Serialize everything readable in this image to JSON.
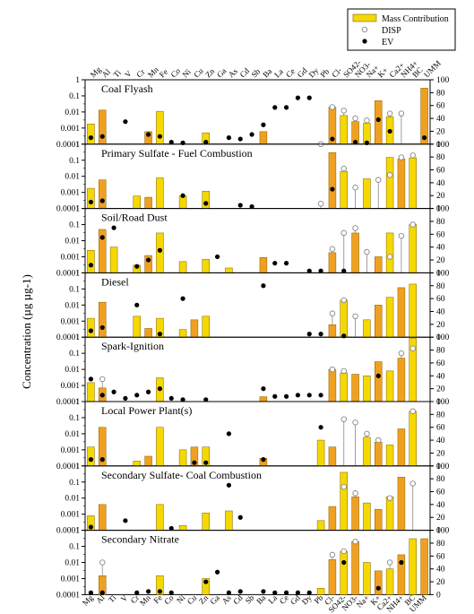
{
  "chart_data": {
    "type": "bar",
    "ylabel": "Concentration (µg µg-1)",
    "y_scale": "log",
    "ylim": [
      0.0001,
      1
    ],
    "y_ticks": [
      "0.0001",
      "0.001",
      "0.01",
      "0.1",
      "1"
    ],
    "y2lim": [
      0,
      100
    ],
    "y2_ticks": [
      "0",
      "20",
      "40",
      "60",
      "80",
      "100"
    ],
    "grid": false,
    "legend": {
      "position": "top-right",
      "entries": [
        {
          "key": "mass",
          "label": "Mass Contribution",
          "color": "#f5d800"
        },
        {
          "key": "disp",
          "label": "DISP"
        },
        {
          "key": "ev",
          "label": "EV"
        }
      ]
    },
    "colors": {
      "bar_light": "#f5d800",
      "bar_dark": "#f0a020",
      "bar_edge": "#806000",
      "disp": "#888888",
      "ev": "#000000"
    },
    "species": [
      "Mg",
      "Al",
      "Ti",
      "V",
      "Cr",
      "Mn",
      "Fe",
      "Co",
      "Ni",
      "Cu",
      "Zn",
      "Ga",
      "As",
      "Cd",
      "Sb",
      "Ba",
      "La",
      "Ce",
      "Gd",
      "Dy",
      "Pb",
      "Cl-",
      "SO42-",
      "NO3-",
      "Na+",
      "K+",
      "Ca2+",
      "NH4+",
      "BC",
      "UMM"
    ],
    "panels": [
      {
        "title": "Coal Flyash",
        "mass": [
          0.0018,
          0.013,
          null,
          null,
          null,
          0.0006,
          0.011,
          null,
          null,
          null,
          0.0005,
          null,
          null,
          null,
          null,
          0.0006,
          null,
          null,
          null,
          null,
          0.0001,
          0.02,
          0.006,
          0.0025,
          0.002,
          0.05,
          0.005,
          null,
          null,
          0.3
        ],
        "disp": [
          null,
          null,
          null,
          null,
          null,
          null,
          null,
          null,
          null,
          null,
          null,
          null,
          null,
          null,
          null,
          null,
          null,
          null,
          null,
          null,
          0.0001,
          0.02,
          0.012,
          0.004,
          0.003,
          null,
          0.008,
          0.008,
          null,
          null
        ],
        "ev": [
          10,
          12,
          null,
          35,
          null,
          15,
          12,
          3,
          2,
          null,
          3,
          null,
          10,
          8,
          15,
          30,
          57,
          57,
          72,
          72,
          null,
          8,
          null,
          3,
          2,
          38,
          20,
          null,
          null,
          10
        ]
      },
      {
        "title": "Primary Sulfate - Fuel Combustion",
        "mass": [
          0.0018,
          0.006,
          null,
          null,
          0.0006,
          0.0005,
          0.008,
          null,
          0.0006,
          null,
          0.0012,
          null,
          null,
          null,
          null,
          null,
          null,
          null,
          null,
          null,
          0.0001,
          0.3,
          0.02,
          null,
          0.007,
          null,
          0.15,
          0.12,
          0.14,
          null
        ],
        "disp": [
          null,
          null,
          null,
          null,
          null,
          null,
          null,
          null,
          null,
          null,
          null,
          null,
          null,
          null,
          null,
          null,
          null,
          null,
          null,
          null,
          0.0002,
          null,
          0.03,
          0.002,
          null,
          0.006,
          0.012,
          0.15,
          0.2,
          null
        ],
        "ev": [
          10,
          12,
          null,
          null,
          null,
          null,
          null,
          null,
          20,
          null,
          8,
          null,
          null,
          5,
          3,
          null,
          null,
          null,
          null,
          null,
          null,
          30,
          null,
          null,
          null,
          null,
          null,
          null,
          null,
          null
        ]
      },
      {
        "title": "Soil/Road Dust",
        "mass": [
          0.0025,
          0.05,
          0.004,
          null,
          0.0003,
          0.0012,
          0.03,
          null,
          0.0005,
          null,
          0.0007,
          null,
          0.0002,
          null,
          null,
          0.0009,
          null,
          null,
          null,
          null,
          null,
          0.0018,
          null,
          0.03,
          null,
          0.001,
          0.03,
          null,
          0.1,
          null
        ],
        "disp": [
          null,
          null,
          null,
          null,
          null,
          null,
          null,
          null,
          null,
          null,
          null,
          null,
          null,
          null,
          null,
          null,
          null,
          null,
          null,
          null,
          null,
          0.003,
          0.03,
          0.06,
          0.002,
          null,
          0.001,
          0.02,
          0.1,
          null
        ],
        "ev": [
          12,
          55,
          70,
          null,
          10,
          20,
          35,
          null,
          null,
          null,
          null,
          25,
          null,
          null,
          null,
          null,
          15,
          15,
          null,
          3,
          3,
          null,
          3,
          null,
          null,
          null,
          null,
          null,
          null,
          null
        ]
      },
      {
        "title": "Diesel",
        "mass": [
          0.0015,
          0.015,
          null,
          null,
          0.002,
          0.00035,
          0.0015,
          null,
          0.0003,
          0.0012,
          0.002,
          null,
          null,
          null,
          null,
          0.0001,
          null,
          null,
          null,
          null,
          null,
          0.0006,
          0.02,
          null,
          0.0012,
          0.01,
          0.03,
          0.12,
          0.2,
          null
        ],
        "disp": [
          null,
          null,
          null,
          null,
          null,
          null,
          null,
          null,
          null,
          null,
          null,
          null,
          null,
          null,
          null,
          null,
          null,
          null,
          null,
          null,
          null,
          0.003,
          0.02,
          0.002,
          null,
          null,
          null,
          null,
          null,
          null
        ],
        "ev": [
          10,
          15,
          null,
          null,
          50,
          null,
          5,
          null,
          60,
          null,
          null,
          null,
          null,
          null,
          null,
          80,
          null,
          null,
          null,
          5,
          5,
          null,
          2,
          null,
          null,
          null,
          null,
          null,
          null,
          null
        ]
      },
      {
        "title": "Spark-Ignition",
        "mass": [
          0.0015,
          0.0007,
          null,
          null,
          null,
          null,
          0.003,
          null,
          null,
          null,
          null,
          null,
          null,
          null,
          null,
          0.0002,
          null,
          null,
          null,
          null,
          0.0001,
          0.01,
          0.006,
          0.005,
          0.004,
          0.03,
          0.008,
          0.05,
          0.85,
          null
        ],
        "disp": [
          null,
          0.0025,
          null,
          null,
          null,
          null,
          null,
          null,
          null,
          null,
          null,
          null,
          null,
          null,
          null,
          null,
          null,
          null,
          null,
          null,
          null,
          0.01,
          0.008,
          null,
          null,
          null,
          null,
          0.1,
          0.2,
          null
        ],
        "ev": [
          35,
          10,
          15,
          5,
          10,
          15,
          20,
          5,
          3,
          null,
          3,
          null,
          null,
          null,
          null,
          20,
          8,
          8,
          10,
          10,
          10,
          null,
          null,
          null,
          null,
          40,
          null,
          null,
          null,
          null
        ]
      },
      {
        "title": "Local Power Plant(s)",
        "mass": [
          0.0015,
          0.025,
          null,
          null,
          0.0002,
          0.0004,
          0.025,
          null,
          0.001,
          0.0015,
          0.0015,
          null,
          null,
          null,
          null,
          0.0003,
          null,
          null,
          null,
          null,
          0.004,
          0.0015,
          null,
          null,
          0.006,
          0.003,
          0.002,
          0.02,
          0.25,
          null
        ],
        "disp": [
          null,
          null,
          null,
          null,
          null,
          null,
          null,
          null,
          null,
          null,
          null,
          null,
          null,
          null,
          null,
          null,
          null,
          null,
          null,
          null,
          null,
          null,
          0.08,
          0.05,
          0.01,
          0.004,
          null,
          null,
          0.25,
          null
        ],
        "ev": [
          10,
          10,
          null,
          null,
          null,
          null,
          null,
          null,
          null,
          5,
          5,
          null,
          50,
          null,
          null,
          10,
          null,
          null,
          null,
          null,
          60,
          null,
          null,
          null,
          null,
          null,
          null,
          null,
          null,
          null
        ]
      },
      {
        "title": "Secondary Sulfate- Coal Combustion",
        "mass": [
          0.0008,
          0.004,
          null,
          null,
          null,
          null,
          0.004,
          null,
          0.0002,
          null,
          0.0012,
          null,
          0.0016,
          null,
          null,
          null,
          null,
          null,
          null,
          null,
          0.0004,
          0.003,
          0.4,
          0.012,
          0.005,
          0.002,
          0.012,
          0.2,
          null,
          null
        ],
        "disp": [
          null,
          null,
          null,
          null,
          null,
          null,
          null,
          null,
          null,
          null,
          null,
          null,
          null,
          null,
          null,
          null,
          null,
          null,
          null,
          null,
          null,
          null,
          0.05,
          0.02,
          null,
          null,
          0.01,
          null,
          0.08,
          null
        ],
        "ev": [
          5,
          null,
          null,
          15,
          null,
          null,
          null,
          3,
          null,
          null,
          null,
          null,
          70,
          20,
          null,
          null,
          null,
          null,
          null,
          null,
          null,
          null,
          null,
          null,
          null,
          null,
          null,
          null,
          null,
          null
        ]
      },
      {
        "title": "Secondary Nitrate",
        "mass": [
          null,
          0.0015,
          null,
          null,
          null,
          null,
          0.0015,
          null,
          null,
          null,
          0.001,
          null,
          null,
          null,
          null,
          null,
          null,
          null,
          null,
          null,
          0.00025,
          0.015,
          0.05,
          0.2,
          0.01,
          0.003,
          0.004,
          0.03,
          0.3,
          0.3
        ],
        "disp": [
          null,
          0.01,
          null,
          null,
          null,
          null,
          null,
          null,
          null,
          null,
          null,
          null,
          null,
          null,
          null,
          null,
          null,
          null,
          null,
          null,
          null,
          0.03,
          0.05,
          0.2,
          null,
          null,
          0.01,
          null,
          null,
          null
        ],
        "ev": [
          3,
          3,
          null,
          null,
          3,
          5,
          5,
          3,
          null,
          null,
          20,
          35,
          3,
          5,
          null,
          5,
          3,
          3,
          3,
          3,
          null,
          null,
          50,
          null,
          null,
          10,
          null,
          50,
          null,
          null
        ]
      }
    ]
  }
}
